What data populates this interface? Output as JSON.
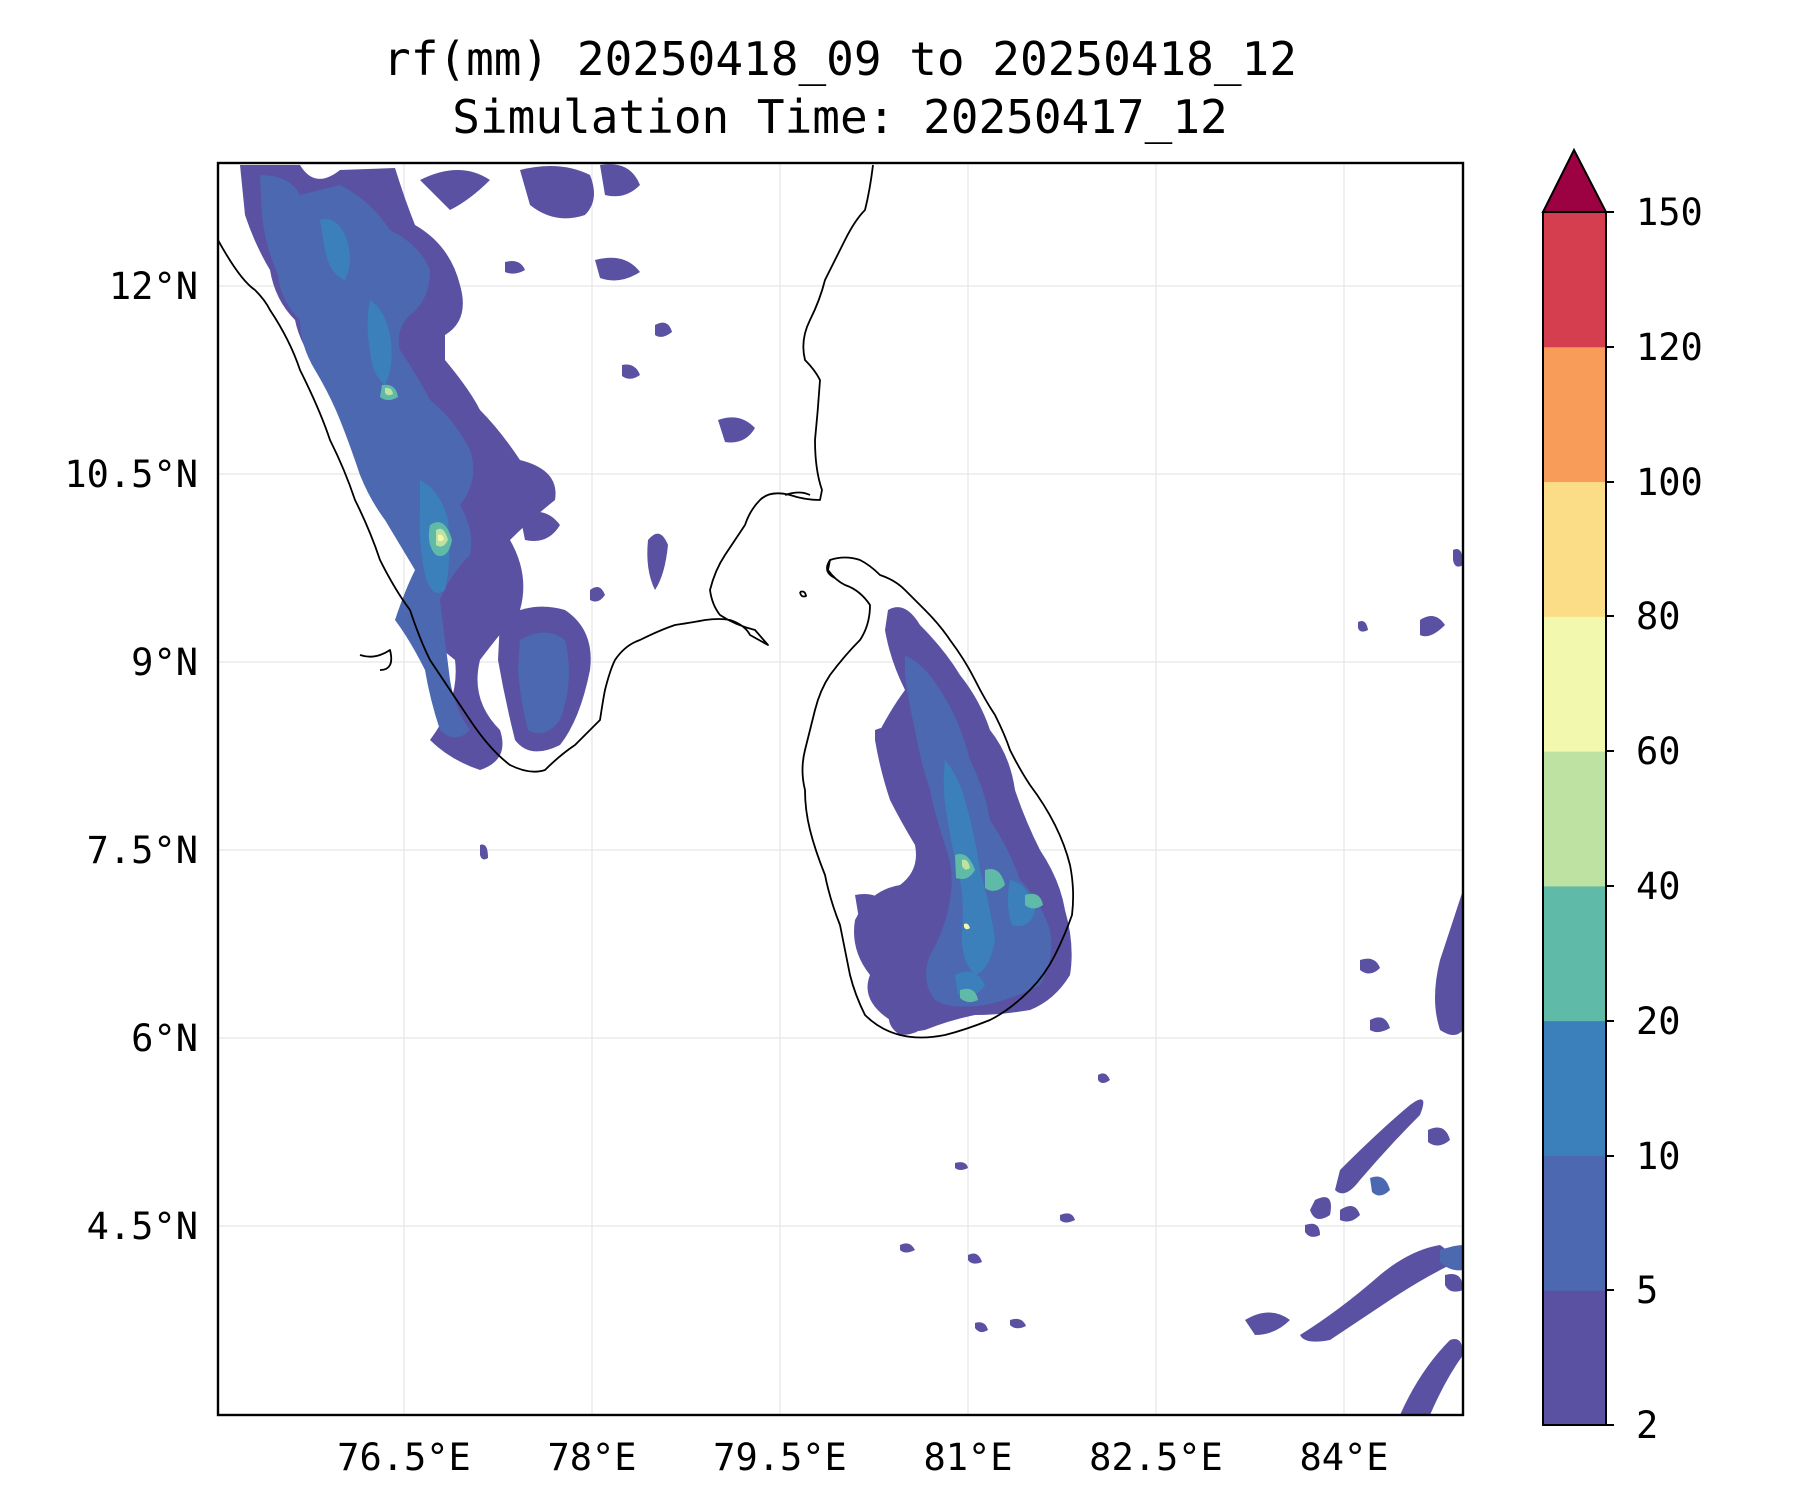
{
  "title": {
    "line1": "rf(mm) 20250418_09 to 20250418_12",
    "line2": "Simulation Time: 20250417_12"
  },
  "map": {
    "lon_ticks": [
      "76.5°E",
      "78°E",
      "79.5°E",
      "81°E",
      "82.5°E",
      "84°E"
    ],
    "lat_ticks": [
      "12°N",
      "10.5°N",
      "9°N",
      "7.5°N",
      "6°N",
      "4.5°N"
    ],
    "lon_range": [
      75.0,
      84.9
    ],
    "lat_range": [
      3.0,
      13.0
    ],
    "gridlines": true
  },
  "colorbar": {
    "levels": [
      "2",
      "5",
      "10",
      "20",
      "40",
      "60",
      "80",
      "100",
      "120",
      "150"
    ],
    "colors": [
      "#5a51a3",
      "#4b68b0",
      "#3b80bb",
      "#5fbba8",
      "#bde2a1",
      "#f2f8ad",
      "#fbdd87",
      "#f89c59",
      "#d43e4e"
    ],
    "extend_color": "#9c0142",
    "extend": "max"
  },
  "precip_colors": {
    "c2": "#5a51a3",
    "c5": "#4b68b0",
    "c10": "#3b80bb",
    "c20": "#5fbba8",
    "c40": "#bde2a1",
    "c60": "#f2f8ad"
  }
}
